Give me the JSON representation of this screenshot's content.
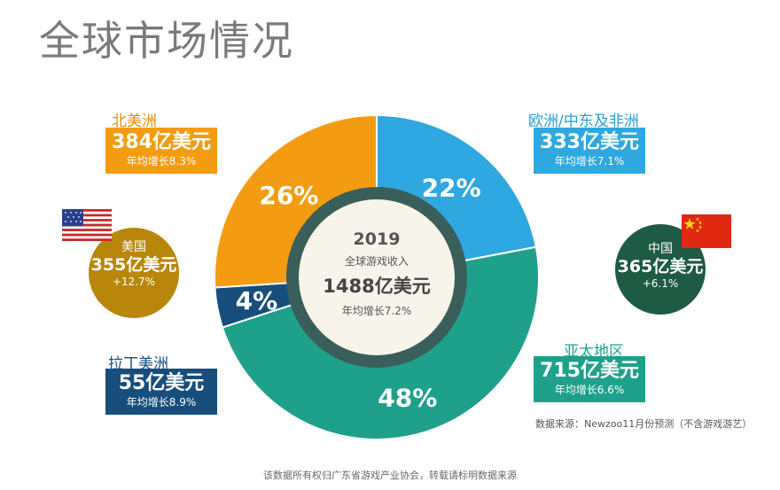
{
  "page": {
    "title": "全球市场情况"
  },
  "chart_data": {
    "type": "pie",
    "categories": [
      "欧洲/中东及非洲",
      "亚太地区",
      "拉丁美洲",
      "北美洲"
    ],
    "values": [
      22,
      48,
      4,
      26
    ],
    "labels": [
      "22%",
      "48%",
      "4%",
      "26%"
    ],
    "colors": [
      "#2fa7e0",
      "#1fa08a",
      "#174e7c",
      "#f39c12"
    ],
    "center": {
      "year": "2019",
      "label": "全球游戏收入",
      "amount": "1488亿美元",
      "growth": "年均增长7.2%"
    }
  },
  "regions": {
    "north_america": {
      "name": "北美洲",
      "amount": "384亿美元",
      "growth": "年均增长8.3%",
      "color": "#f39c12"
    },
    "emea": {
      "name": "欧洲/中东及非洲",
      "amount": "333亿美元",
      "growth": "年均增长7.1%",
      "color": "#2fa7e0"
    },
    "latam": {
      "name": "拉丁美洲",
      "amount": "55亿美元",
      "growth": "年均增长8.9%",
      "color": "#174e7c"
    },
    "apac": {
      "name": "亚太地区",
      "amount": "715亿美元",
      "growth": "年均增长6.6%",
      "color": "#1fa08a"
    }
  },
  "countries": {
    "usa": {
      "name": "美国",
      "amount": "355亿美元",
      "growth": "+12.7%",
      "color": "#b8860b",
      "flag_icon": "us-flag-icon"
    },
    "china": {
      "name": "中国",
      "amount": "365亿美元",
      "growth": "+6.1%",
      "color": "#1e5a44",
      "flag_icon": "china-flag-icon"
    }
  },
  "source": "数据来源：Newzoo11月份预测（不含游戏游艺）",
  "footer": "该数据所有权归广东省游戏产业协会，转载请标明数据来源"
}
